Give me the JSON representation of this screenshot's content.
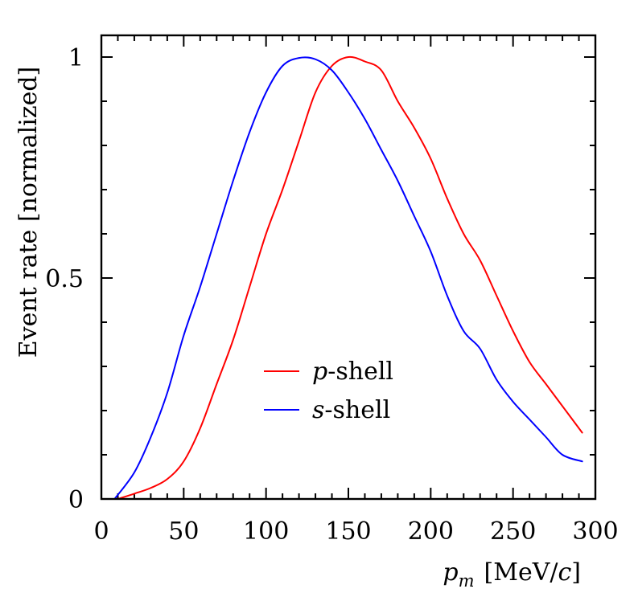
{
  "chart_data": {
    "type": "line",
    "title": "",
    "xlabel_var": "p",
    "xlabel_sub": "m",
    "xlabel_unit_open": "[MeV/",
    "xlabel_unit_var": "c",
    "xlabel_unit_close": "]",
    "ylabel": "Event rate [normalized]",
    "xlim": [
      0,
      300
    ],
    "ylim": [
      0,
      1.05
    ],
    "xticks": [
      0,
      50,
      100,
      150,
      200,
      250,
      300
    ],
    "xtick_labels": [
      "0",
      "50",
      "100",
      "150",
      "200",
      "250",
      "300"
    ],
    "yticks": [
      0,
      0.5,
      1
    ],
    "ytick_labels": [
      "0",
      "0.5",
      "1"
    ],
    "grid": false,
    "legend_position": "center-bottom",
    "series": [
      {
        "name": "p-shell",
        "name_var": "p",
        "name_suffix": "-shell",
        "color": "#ff0000",
        "x": [
          10,
          20,
          30,
          40,
          50,
          60,
          70,
          80,
          90,
          100,
          110,
          120,
          130,
          140,
          150,
          160,
          170,
          180,
          190,
          200,
          210,
          220,
          230,
          240,
          250,
          260,
          270,
          280,
          292
        ],
        "y": [
          0.0,
          0.012,
          0.025,
          0.045,
          0.085,
          0.16,
          0.26,
          0.36,
          0.48,
          0.6,
          0.7,
          0.81,
          0.92,
          0.98,
          1.0,
          0.99,
          0.97,
          0.9,
          0.84,
          0.77,
          0.68,
          0.6,
          0.54,
          0.46,
          0.38,
          0.31,
          0.26,
          0.21,
          0.15
        ]
      },
      {
        "name": "s-shell",
        "name_var": "s",
        "name_suffix": "-shell",
        "color": "#0000ff",
        "x": [
          8,
          20,
          30,
          40,
          50,
          60,
          70,
          80,
          90,
          100,
          110,
          120,
          130,
          140,
          150,
          160,
          170,
          180,
          190,
          200,
          210,
          220,
          230,
          240,
          250,
          260,
          270,
          280,
          292
        ],
        "y": [
          0.0,
          0.06,
          0.14,
          0.24,
          0.37,
          0.48,
          0.6,
          0.72,
          0.83,
          0.92,
          0.98,
          0.998,
          0.995,
          0.97,
          0.92,
          0.86,
          0.79,
          0.72,
          0.64,
          0.56,
          0.46,
          0.38,
          0.34,
          0.27,
          0.22,
          0.18,
          0.14,
          0.1,
          0.085
        ]
      }
    ]
  }
}
